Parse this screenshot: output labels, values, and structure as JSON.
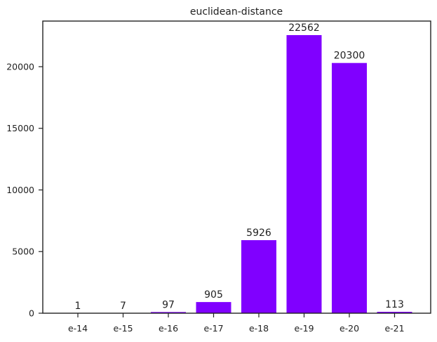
{
  "chart_data": {
    "type": "bar",
    "title": "euclidean-distance",
    "xlabel": "",
    "ylabel": "",
    "categories": [
      "e-14",
      "e-15",
      "e-16",
      "e-17",
      "e-18",
      "e-19",
      "e-20",
      "e-21"
    ],
    "values": [
      1,
      7,
      97,
      905,
      5926,
      22562,
      20300,
      113
    ],
    "ylim": [
      0,
      23700
    ],
    "yticks": [
      0,
      5000,
      10000,
      15000,
      20000
    ],
    "bar_color": "#8000ff",
    "grid": false,
    "data_labels": true
  }
}
